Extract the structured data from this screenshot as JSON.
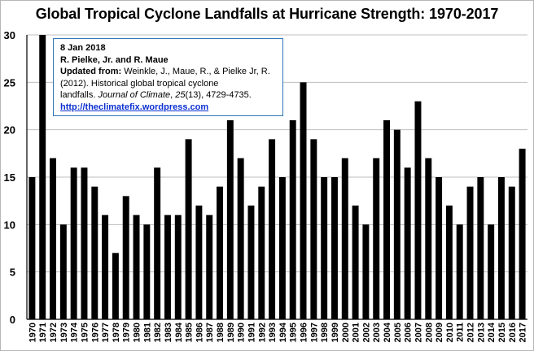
{
  "chart_data": {
    "type": "bar",
    "title": "Global Tropical Cyclone Landfalls at Hurricane Strength: 1970-2017",
    "xlabel": "",
    "ylabel": "",
    "ylim": [
      0,
      30
    ],
    "yticks": [
      0,
      5,
      10,
      15,
      20,
      25,
      30
    ],
    "grid": true,
    "legend": "none",
    "bar_color": "#000000",
    "categories": [
      "1970",
      "1971",
      "1972",
      "1973",
      "1974",
      "1975",
      "1976",
      "1977",
      "1978",
      "1979",
      "1980",
      "1981",
      "1982",
      "1983",
      "1984",
      "1985",
      "1986",
      "1987",
      "1988",
      "1989",
      "1990",
      "1991",
      "1992",
      "1993",
      "1994",
      "1995",
      "1996",
      "1997",
      "1998",
      "1999",
      "2000",
      "2001",
      "2002",
      "2003",
      "2004",
      "2005",
      "2006",
      "2007",
      "2008",
      "2009",
      "2010",
      "2011",
      "2012",
      "2013",
      "2014",
      "2015",
      "2016",
      "2017"
    ],
    "values": [
      15,
      30,
      17,
      10,
      16,
      16,
      14,
      11,
      7,
      13,
      11,
      10,
      16,
      11,
      11,
      19,
      12,
      11,
      14,
      21,
      17,
      12,
      14,
      19,
      15,
      21,
      25,
      19,
      15,
      15,
      17,
      12,
      10,
      17,
      21,
      20,
      16,
      23,
      17,
      15,
      12,
      10,
      14,
      15,
      10,
      15,
      14,
      18
    ]
  },
  "note": {
    "date": "8 Jan 2018",
    "authors": "R. Pielke, Jr. and R. Maue",
    "updated_label": "Updated from:",
    "citation_1": " Weinkle, J., Maue, R., & Pielke Jr, R.",
    "citation_2": "(2012). Historical global tropical cyclone",
    "citation_3a": "landfalls. ",
    "journal": "Journal of Climate",
    "citation_3b": ", ",
    "volume": "25",
    "citation_3c": "(13), 4729-4735.",
    "link": "http://theclimatefix.wordpress.com"
  },
  "colors": {
    "box_border": "#2e74b5",
    "link": "#0b2fd1",
    "gridline": "#bfbfbf"
  }
}
